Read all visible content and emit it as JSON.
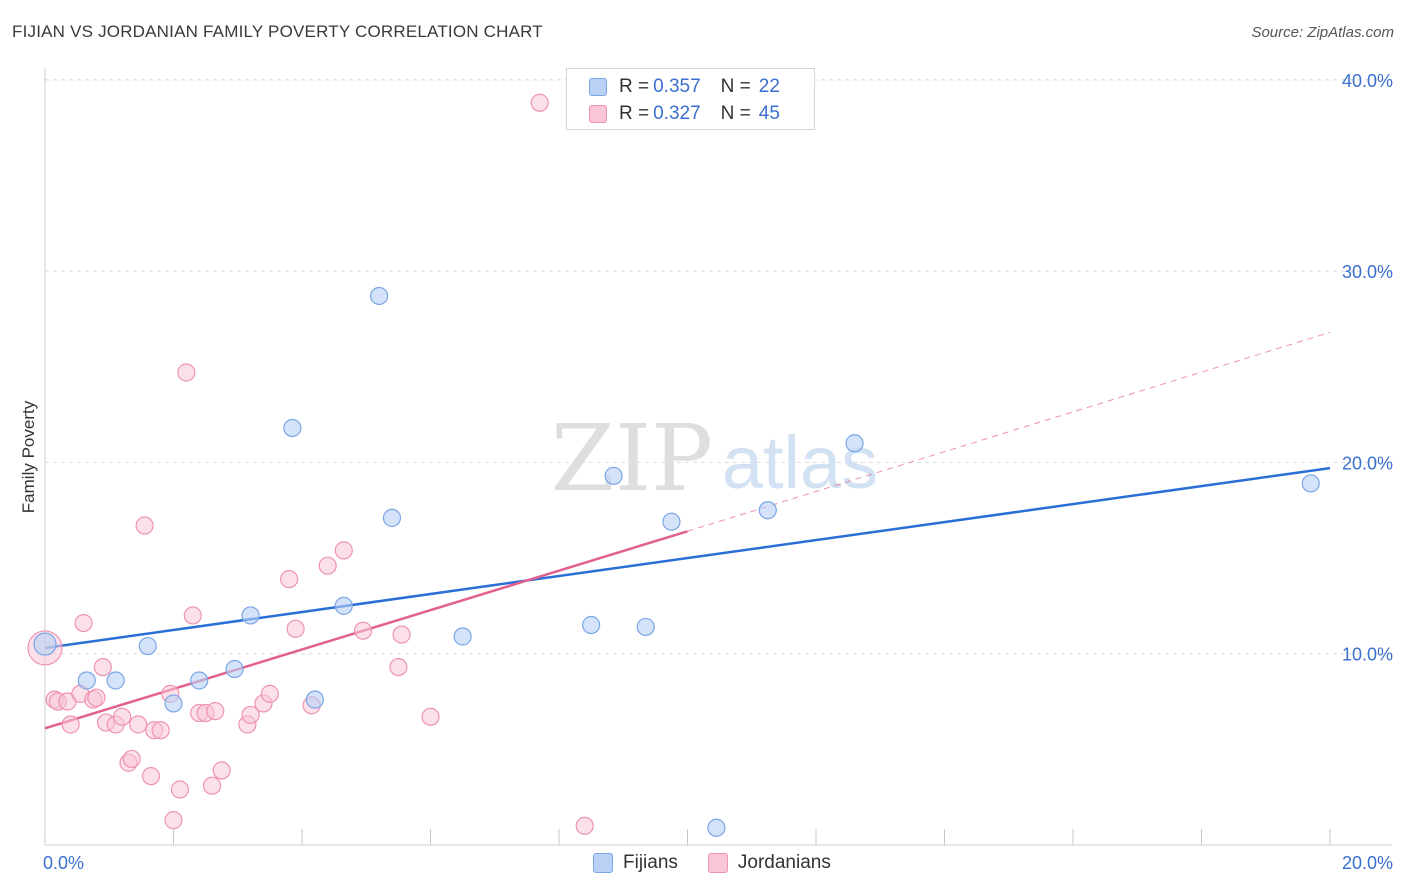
{
  "header": {
    "title": "FIJIAN VS JORDANIAN FAMILY POVERTY CORRELATION CHART",
    "source": "Source: ZipAtlas.com"
  },
  "legend": {
    "rows": [
      {
        "r_label": "R = ",
        "r_value": "0.357",
        "n_label": "N = ",
        "n_value": "22"
      },
      {
        "r_label": "R = ",
        "r_value": "0.327",
        "n_label": "N = ",
        "n_value": "45"
      }
    ],
    "bottom": [
      "Fijians",
      "Jordanians"
    ]
  },
  "watermark": {
    "zip": "ZIP",
    "atlas": "atlas"
  },
  "colors": {
    "fijian_fill": "#b8d1f5",
    "fijian_stroke": "#7aa6e6",
    "fijian_line": "#2b6fd6",
    "jordanian_fill": "#f8c6d6",
    "jordanian_stroke": "#ee93b2",
    "jordanian_line": "#e2608f",
    "tick_label": "#3a6fd0",
    "grid": "#dcdcdc"
  },
  "chart_data": {
    "type": "scatter",
    "title": "FIJIAN VS JORDANIAN FAMILY POVERTY CORRELATION CHART",
    "xlabel": "",
    "ylabel": "Family Poverty",
    "xlim": [
      0,
      20
    ],
    "ylim": [
      0,
      40
    ],
    "x_tick_labels": [
      "0.0%",
      "20.0%"
    ],
    "y_ticks": [
      10,
      20,
      30,
      40
    ],
    "y_tick_labels": [
      "10.0%",
      "20.0%",
      "30.0%",
      "40.0%"
    ],
    "grid": true,
    "series": [
      {
        "name": "Fijians",
        "r": 0.357,
        "n": 22,
        "points": [
          [
            0.0,
            10.5
          ],
          [
            0.65,
            8.6
          ],
          [
            1.1,
            8.6
          ],
          [
            1.6,
            10.4
          ],
          [
            2.0,
            7.4
          ],
          [
            2.4,
            8.6
          ],
          [
            2.95,
            9.2
          ],
          [
            3.2,
            12.0
          ],
          [
            3.85,
            21.8
          ],
          [
            4.2,
            7.6
          ],
          [
            4.65,
            12.5
          ],
          [
            5.2,
            28.7
          ],
          [
            5.4,
            17.1
          ],
          [
            6.5,
            10.9
          ],
          [
            8.5,
            11.5
          ],
          [
            8.85,
            19.3
          ],
          [
            9.35,
            11.4
          ],
          [
            9.75,
            16.9
          ],
          [
            10.45,
            0.9
          ],
          [
            11.25,
            17.5
          ],
          [
            12.6,
            21.0
          ],
          [
            19.7,
            18.9
          ]
        ],
        "trend": {
          "x": [
            0,
            20
          ],
          "y": [
            10.3,
            19.7
          ],
          "style": "solid"
        }
      },
      {
        "name": "Jordanians",
        "r": 0.327,
        "n": 45,
        "points": [
          [
            0.0,
            10.3
          ],
          [
            0.15,
            7.6
          ],
          [
            0.2,
            7.5
          ],
          [
            0.35,
            7.5
          ],
          [
            0.4,
            6.3
          ],
          [
            0.55,
            7.9
          ],
          [
            0.6,
            11.6
          ],
          [
            0.75,
            7.6
          ],
          [
            0.8,
            7.7
          ],
          [
            0.9,
            9.3
          ],
          [
            0.95,
            6.4
          ],
          [
            1.1,
            6.3
          ],
          [
            1.2,
            6.7
          ],
          [
            1.3,
            4.3
          ],
          [
            1.35,
            4.5
          ],
          [
            1.45,
            6.3
          ],
          [
            1.55,
            16.7
          ],
          [
            1.65,
            3.6
          ],
          [
            1.7,
            6.0
          ],
          [
            1.8,
            6.0
          ],
          [
            1.95,
            7.9
          ],
          [
            2.0,
            1.3
          ],
          [
            2.1,
            2.9
          ],
          [
            2.2,
            24.7
          ],
          [
            2.3,
            12.0
          ],
          [
            2.4,
            6.9
          ],
          [
            2.5,
            6.9
          ],
          [
            2.6,
            3.1
          ],
          [
            2.65,
            7.0
          ],
          [
            2.75,
            3.9
          ],
          [
            3.15,
            6.3
          ],
          [
            3.2,
            6.8
          ],
          [
            3.4,
            7.4
          ],
          [
            3.5,
            7.9
          ],
          [
            3.8,
            13.9
          ],
          [
            3.9,
            11.3
          ],
          [
            4.15,
            7.3
          ],
          [
            4.4,
            14.6
          ],
          [
            4.65,
            15.4
          ],
          [
            4.95,
            11.2
          ],
          [
            5.5,
            9.3
          ],
          [
            5.55,
            11.0
          ],
          [
            6.0,
            6.7
          ],
          [
            7.7,
            38.8
          ],
          [
            8.4,
            1.0
          ]
        ],
        "trend": {
          "x": [
            0,
            10
          ],
          "y": [
            6.1,
            16.4
          ],
          "style": "solid"
        },
        "trend_extension": {
          "x": [
            10,
            20
          ],
          "y": [
            16.4,
            26.8
          ],
          "style": "dashed"
        }
      }
    ]
  }
}
